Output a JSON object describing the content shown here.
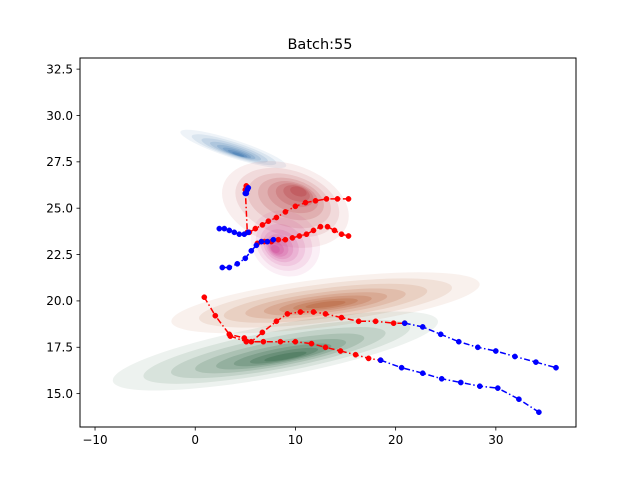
{
  "chart_data": {
    "type": "line",
    "title": "Batch:55",
    "xlabel": "",
    "ylabel": "",
    "xlim": [
      -11.5,
      38
    ],
    "ylim": [
      13.2,
      33.1
    ],
    "x_ticks": [
      -10,
      0,
      10,
      20,
      30
    ],
    "x_tick_labels": [
      "−10",
      "0",
      "10",
      "20",
      "30"
    ],
    "y_ticks": [
      15.0,
      17.5,
      20.0,
      22.5,
      25.0,
      27.5,
      30.0,
      32.5
    ],
    "y_tick_labels": [
      "15.0",
      "17.5",
      "20.0",
      "22.5",
      "25.0",
      "27.5",
      "30.0",
      "32.5"
    ],
    "grid": false,
    "legend": "none",
    "density_regions": [
      {
        "colormap": "Blues",
        "color": "#08519c",
        "center": [
          3.8,
          28.2
        ],
        "spread": [
          0.9,
          3.0
        ],
        "angle_deg": -72,
        "peak": [
          4.3,
          27.9
        ]
      },
      {
        "colormap": "Reds",
        "color": "#a50f15",
        "center": [
          9.0,
          25.2
        ],
        "spread": [
          6.5,
          2.2
        ],
        "angle_deg": 17,
        "peak": [
          10.3,
          25.9
        ]
      },
      {
        "colormap": "Purples-Red",
        "color": "#c51b7d",
        "center": [
          9.0,
          23.1
        ],
        "spread": [
          3.6,
          1.7
        ],
        "angle_deg": 35,
        "peak": [
          8.0,
          22.8
        ]
      },
      {
        "colormap": "Oranges",
        "color": "#a63603",
        "center": [
          13.0,
          19.9
        ],
        "spread": [
          15.5,
          1.3
        ],
        "angle_deg": -7,
        "peak": [
          13.0,
          19.8
        ]
      },
      {
        "colormap": "Greens",
        "color": "#00441b",
        "center": [
          8.0,
          17.3
        ],
        "spread": [
          16.5,
          1.4
        ],
        "angle_deg": -10.5,
        "peak": [
          9.0,
          17.0
        ]
      }
    ],
    "series": [
      {
        "color": "#ff0000",
        "style": "dashdot",
        "x": [
          5.1,
          5.0,
          5.2,
          5.4,
          6.0,
          6.7,
          7.3,
          8.1,
          9.0,
          10.0,
          11.0,
          12.0,
          13.1,
          14.2,
          15.3
        ],
        "y": [
          26.2,
          26.0,
          23.7,
          23.7,
          23.9,
          24.1,
          24.3,
          24.5,
          24.8,
          25.1,
          25.3,
          25.4,
          25.5,
          25.5,
          25.5
        ]
      },
      {
        "color": "#ff0000",
        "style": "dashdot",
        "x": [
          6.2,
          6.9,
          7.6,
          8.3,
          9.0,
          9.7,
          10.4,
          11.1,
          11.8,
          12.5,
          13.2,
          13.9,
          14.6,
          15.3
        ],
        "y": [
          23.1,
          23.2,
          23.2,
          23.3,
          23.3,
          23.4,
          23.5,
          23.6,
          23.8,
          24.0,
          24.0,
          23.8,
          23.6,
          23.5
        ]
      },
      {
        "color": "#ff0000",
        "style": "dashdot",
        "x": [
          0.9,
          2.0,
          3.4,
          4.9,
          5.6,
          6.7,
          8.1,
          9.2,
          10.5,
          11.8,
          13.0,
          14.6,
          16.3,
          18.0,
          19.8,
          20.9
        ],
        "y": [
          20.2,
          19.2,
          18.2,
          18.0,
          17.8,
          18.3,
          18.9,
          19.3,
          19.4,
          19.4,
          19.3,
          19.1,
          18.9,
          18.9,
          18.8,
          18.8
        ]
      },
      {
        "color": "#ff0000",
        "style": "dashdot",
        "x": [
          3.5,
          5.1,
          6.8,
          8.5,
          10.0,
          11.6,
          13.0,
          14.5,
          16.0,
          17.3,
          18.5
        ],
        "y": [
          18.1,
          17.8,
          17.8,
          17.8,
          17.8,
          17.7,
          17.5,
          17.3,
          17.1,
          16.9,
          16.8
        ]
      },
      {
        "color": "#0000ff",
        "style": "dashdot",
        "x": [
          5.0,
          5.1,
          5.2,
          5.3
        ],
        "y": [
          25.8,
          25.8,
          26.0,
          26.1
        ]
      },
      {
        "color": "#0000ff",
        "style": "dashdot",
        "x": [
          2.4,
          2.9,
          3.4,
          3.9,
          4.4,
          4.9,
          5.3
        ],
        "y": [
          23.9,
          23.9,
          23.8,
          23.7,
          23.6,
          23.6,
          23.7
        ]
      },
      {
        "color": "#0000ff",
        "style": "dashdot",
        "x": [
          2.7,
          3.4,
          4.2,
          5.0,
          5.6,
          6.1,
          6.6,
          7.2,
          7.8
        ],
        "y": [
          21.8,
          21.8,
          22.0,
          22.3,
          22.7,
          23.0,
          23.2,
          23.2,
          23.3
        ]
      },
      {
        "color": "#0000ff",
        "style": "dashdot",
        "x": [
          20.9,
          22.7,
          24.5,
          26.3,
          28.2,
          30.0,
          31.9,
          34.0,
          36.0
        ],
        "y": [
          18.8,
          18.6,
          18.2,
          17.8,
          17.5,
          17.3,
          17.0,
          16.7,
          16.4
        ]
      },
      {
        "color": "#0000ff",
        "style": "dashdot",
        "x": [
          18.5,
          20.6,
          22.7,
          24.6,
          26.5,
          28.4,
          30.2,
          32.3,
          34.3
        ],
        "y": [
          16.8,
          16.4,
          16.1,
          15.8,
          15.6,
          15.4,
          15.3,
          14.7,
          14.0
        ]
      }
    ]
  }
}
